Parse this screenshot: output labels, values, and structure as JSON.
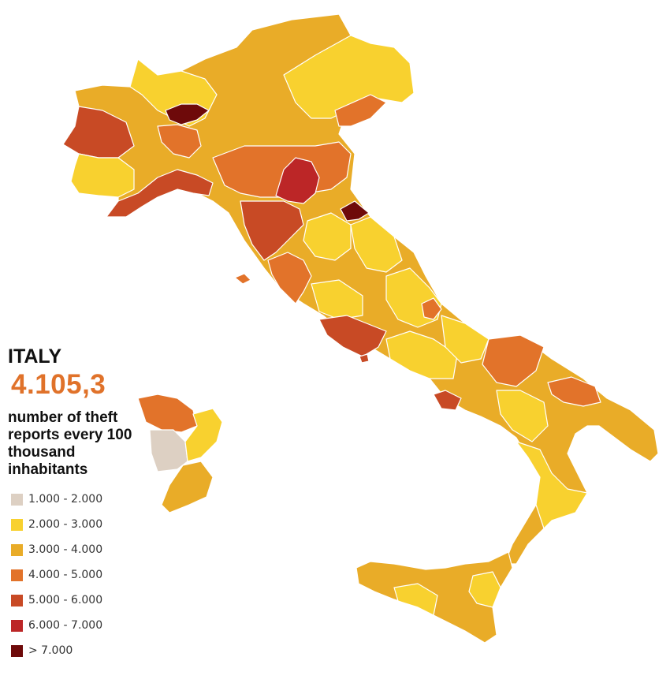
{
  "header": {
    "title": "ITALY",
    "value": "4.105,3",
    "value_color": "#E0722A",
    "subtitle": "number of theft reports every 100 thousand inhabitants"
  },
  "legend": {
    "items": [
      {
        "label": "1.000 - 2.000",
        "color": "#DDD0C3"
      },
      {
        "label": "2.000 - 3.000",
        "color": "#F8D12F"
      },
      {
        "label": "3.000 - 4.000",
        "color": "#E9AC28"
      },
      {
        "label": "4.000 - 5.000",
        "color": "#E2732A"
      },
      {
        "label": "5.000 - 6.000",
        "color": "#C84A25"
      },
      {
        "label": "6.000 - 7.000",
        "color": "#BC2627"
      },
      {
        "label": "> 7.000",
        "color": "#6E0A0A"
      }
    ]
  }
}
